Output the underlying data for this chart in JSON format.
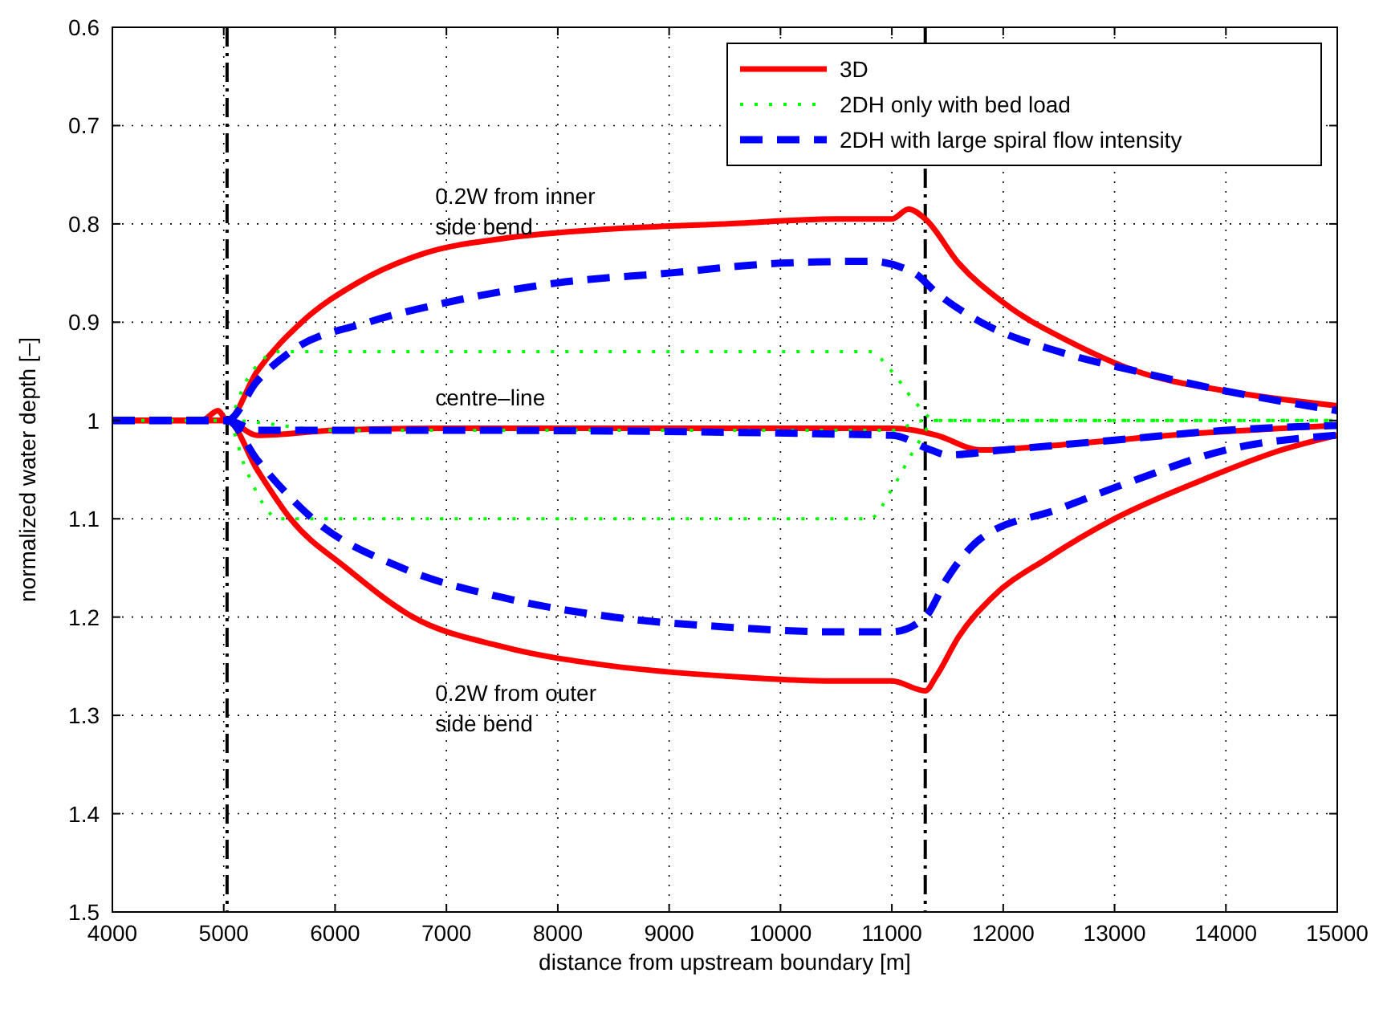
{
  "chart_data": {
    "type": "line",
    "xlabel": "distance from upstream boundary [m]",
    "ylabel": "normalized water depth [–]",
    "xlim": [
      4000,
      15000
    ],
    "ylim": [
      1.5,
      0.6
    ],
    "xticks": [
      4000,
      5000,
      6000,
      7000,
      8000,
      9000,
      10000,
      11000,
      12000,
      13000,
      14000,
      15000
    ],
    "yticks": [
      0.6,
      0.7,
      0.8,
      0.9,
      1,
      1.1,
      1.2,
      1.3,
      1.4,
      1.5
    ],
    "grid": true,
    "legend": "top right",
    "marker": "none",
    "ref_lines": [
      {
        "axis": "x",
        "value": 5030,
        "line_style": "dashed",
        "color": "#000000"
      },
      {
        "axis": "x",
        "value": 11300,
        "line_style": "dashed",
        "color": "#000000"
      }
    ],
    "annotations": [
      "0.2W from inner\nside bend",
      "centre–line",
      "0.2W from outer\nside bend"
    ],
    "series": [
      {
        "name": "3D",
        "color": "#ff0000",
        "line_style": "solid",
        "x": [
          4000,
          4800,
          4950,
          5030,
          5300,
          5700,
          6200,
          6800,
          7500,
          8500,
          9500,
          10500,
          11000,
          11150,
          11300,
          11600,
          12000,
          12600,
          13200,
          14000,
          15000
        ],
        "values": [
          1,
          1,
          0.99,
          1,
          0.95,
          0.9,
          0.86,
          0.83,
          0.815,
          0.805,
          0.8,
          0.795,
          0.795,
          0.785,
          0.795,
          0.84,
          0.88,
          0.92,
          0.95,
          0.97,
          0.985
        ]
      },
      {
        "name": "2DH only with bed load",
        "color": "#00ff00",
        "line_style": "dotted",
        "x": [
          4000,
          5030,
          5200,
          5500,
          10800,
          11000,
          11200,
          11400,
          12000,
          15000
        ],
        "values": [
          1,
          1,
          0.96,
          0.93,
          0.93,
          0.95,
          0.98,
          1,
          1,
          1
        ]
      },
      {
        "name": "2DH with large spiral flow intensity",
        "color": "#0000ff",
        "line_style": "dashed",
        "x": [
          4000,
          5030,
          5300,
          5600,
          6300,
          7000,
          8000,
          9000,
          10000,
          10800,
          11200,
          11400,
          11800,
          12500,
          13200,
          14000,
          15000
        ],
        "values": [
          1,
          1,
          0.96,
          0.93,
          0.9,
          0.88,
          0.86,
          0.85,
          0.84,
          0.838,
          0.85,
          0.87,
          0.9,
          0.93,
          0.95,
          0.97,
          0.99
        ]
      },
      {
        "color": "#ff0000",
        "line_style": "solid",
        "x": [
          4000,
          5030,
          5300,
          6000,
          7000,
          11000,
          11200,
          11400,
          11800,
          12500,
          13500,
          15000
        ],
        "values": [
          1,
          1,
          1.015,
          1.01,
          1.008,
          1.008,
          1.01,
          1.015,
          1.03,
          1.025,
          1.015,
          1.005
        ]
      },
      {
        "color": "#00ff00",
        "line_style": "dotted",
        "x": [
          4000,
          5030,
          6000,
          11000,
          11300,
          12000,
          15000
        ],
        "values": [
          1,
          1,
          1.01,
          1.01,
          1,
          1,
          1
        ]
      },
      {
        "color": "#0000ff",
        "line_style": "dashed",
        "x": [
          4000,
          5030,
          5300,
          7000,
          11000,
          11350,
          11500,
          12000,
          13000,
          14000,
          15000
        ],
        "values": [
          1,
          1,
          1.01,
          1.01,
          1.015,
          1.03,
          1.035,
          1.03,
          1.02,
          1.01,
          1.005
        ]
      },
      {
        "color": "#ff0000",
        "line_style": "solid",
        "x": [
          4000,
          5030,
          5300,
          5600,
          6100,
          6700,
          7500,
          8500,
          9500,
          10500,
          11000,
          11300,
          11400,
          11600,
          11900,
          12400,
          13000,
          13800,
          14500,
          15000
        ],
        "values": [
          1,
          1,
          1.05,
          1.1,
          1.15,
          1.2,
          1.23,
          1.25,
          1.26,
          1.265,
          1.265,
          1.275,
          1.26,
          1.22,
          1.18,
          1.14,
          1.1,
          1.06,
          1.03,
          1.015
        ]
      },
      {
        "color": "#00ff00",
        "line_style": "dotted",
        "x": [
          4000,
          5030,
          5200,
          5500,
          10800,
          11000,
          11200,
          11400,
          12000,
          15000
        ],
        "values": [
          1,
          1,
          1.05,
          1.1,
          1.1,
          1.07,
          1.03,
          1,
          1,
          1
        ]
      },
      {
        "color": "#0000ff",
        "line_style": "dashed",
        "x": [
          4000,
          5030,
          5300,
          5800,
          6600,
          7500,
          8500,
          9500,
          10500,
          11000,
          11300,
          11500,
          11800,
          12500,
          13200,
          14000,
          15000
        ],
        "values": [
          1,
          1,
          1.04,
          1.1,
          1.15,
          1.18,
          1.2,
          1.21,
          1.215,
          1.215,
          1.2,
          1.16,
          1.12,
          1.09,
          1.06,
          1.03,
          1.015
        ]
      }
    ]
  }
}
